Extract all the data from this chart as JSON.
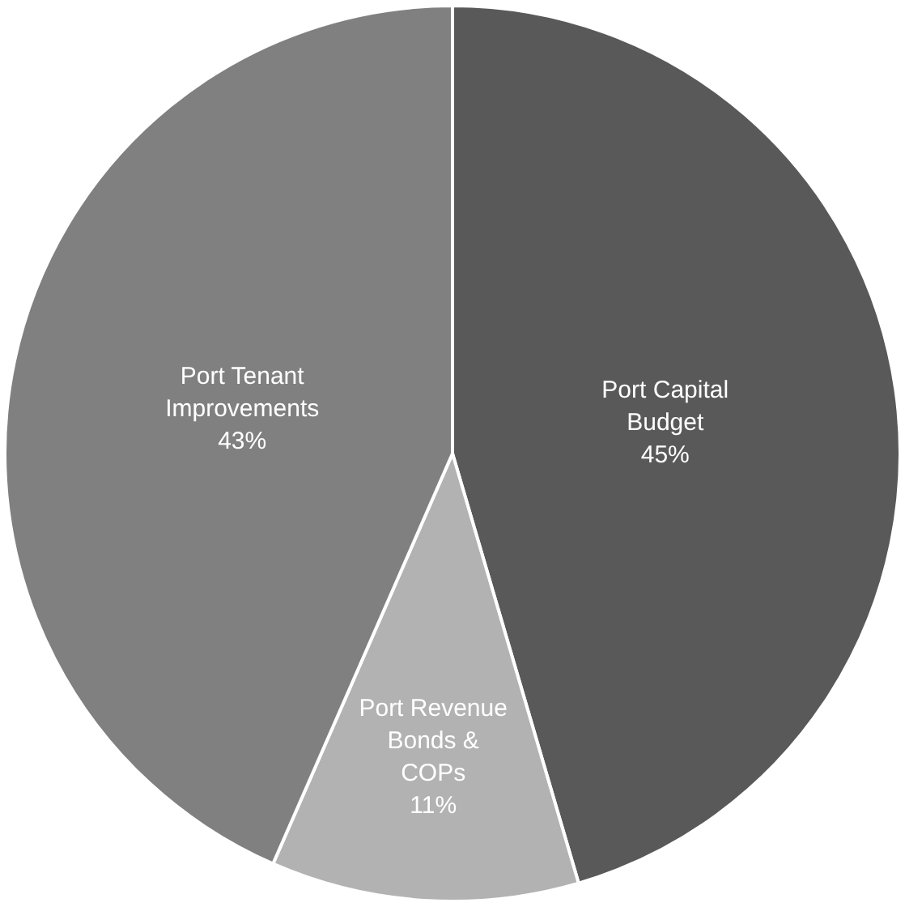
{
  "chart_data": {
    "type": "pie",
    "categories": [
      "Port Capital Budget",
      "Port Revenue Bonds & COPs",
      "Port Tenant Improvements"
    ],
    "values": [
      45,
      11,
      43
    ],
    "colors": [
      "#595959",
      "#b2b2b2",
      "#808080"
    ],
    "value_labels": [
      "45%",
      "11%",
      "43%"
    ],
    "legend": false
  }
}
